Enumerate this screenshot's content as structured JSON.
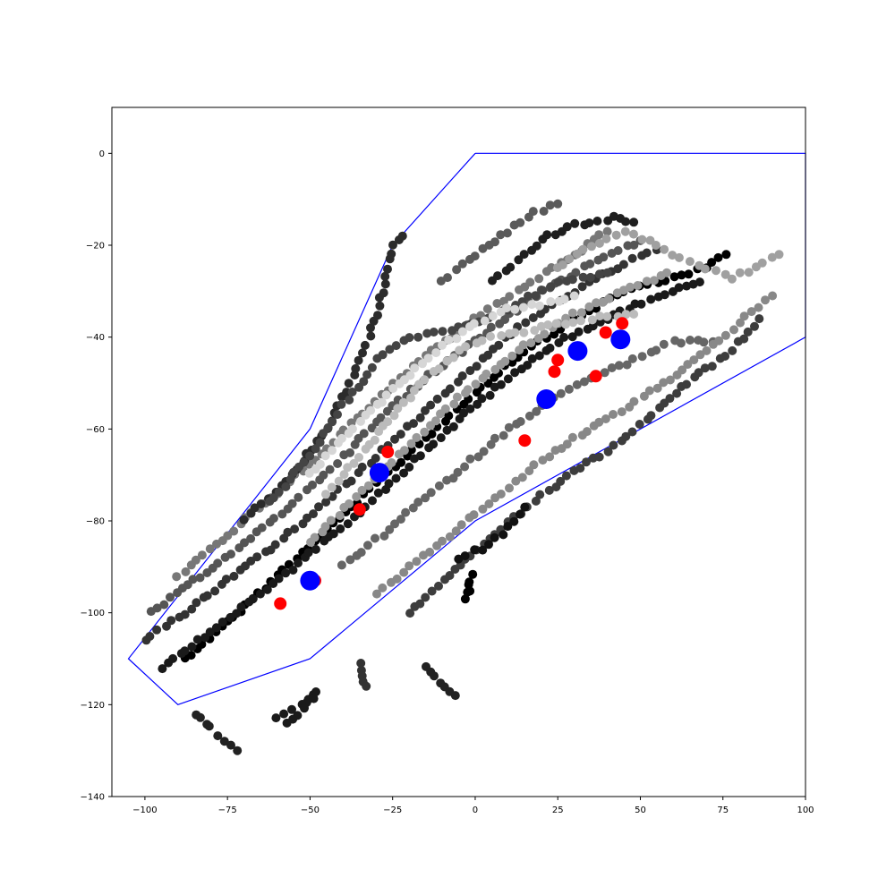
{
  "chart_data": {
    "type": "scatter",
    "title": "",
    "xlabel": "",
    "ylabel": "",
    "xlim": [
      -110,
      100
    ],
    "ylim": [
      -140,
      10
    ],
    "grid": false,
    "xticks": [
      -100,
      -75,
      -50,
      -25,
      0,
      25,
      50,
      75,
      100
    ],
    "yticks": [
      0,
      -20,
      -40,
      -60,
      -80,
      -100,
      -120,
      -140
    ],
    "xtick_labels": [
      "−100",
      "−75",
      "−50",
      "−25",
      "0",
      "25",
      "50",
      "75",
      "100"
    ],
    "ytick_labels": [
      "0",
      "−20",
      "−40",
      "−60",
      "−80",
      "−100",
      "−120",
      "−140"
    ],
    "colors": {
      "boundary": "#0000ff",
      "red": "#ff0000",
      "blue": "#0000ff"
    },
    "boundary_polygon": [
      [
        0,
        0
      ],
      [
        100,
        0
      ],
      [
        100,
        -40
      ],
      [
        0,
        -80
      ],
      [
        -50,
        -110
      ],
      [
        -90,
        -120
      ],
      [
        -105,
        -110
      ],
      [
        -50,
        -60
      ],
      [
        -25,
        -20
      ],
      [
        0,
        0
      ]
    ],
    "blue_points": [
      [
        -50,
        -93
      ],
      [
        -29,
        -69.5
      ],
      [
        21.5,
        -53.5
      ],
      [
        31,
        -43
      ],
      [
        44,
        -40.5
      ]
    ],
    "red_points": [
      [
        -59,
        -98
      ],
      [
        -48.5,
        -93
      ],
      [
        -35,
        -77.5
      ],
      [
        -26.5,
        -65
      ],
      [
        15,
        -62.5
      ],
      [
        24,
        -47.5
      ],
      [
        25,
        -45
      ],
      [
        36.5,
        -48.5
      ],
      [
        39.5,
        -39
      ],
      [
        44.5,
        -37
      ]
    ],
    "tracks": [
      {
        "shade": "#000000",
        "points": [
          [
            -88,
            -110
          ],
          [
            -75,
            -102
          ],
          [
            -60,
            -92
          ],
          [
            -45,
            -82
          ],
          [
            -30,
            -72
          ],
          [
            -15,
            -62
          ],
          [
            0,
            -52
          ],
          [
            15,
            -43
          ],
          [
            30,
            -36
          ],
          [
            45,
            -30
          ],
          [
            60,
            -27
          ],
          [
            70,
            -25
          ],
          [
            76,
            -22
          ]
        ]
      },
      {
        "shade": "#1a1a1a",
        "points": [
          [
            -95,
            -112
          ],
          [
            -80,
            -104
          ],
          [
            -65,
            -96
          ],
          [
            -50,
            -87
          ],
          [
            -35,
            -78
          ],
          [
            -20,
            -68
          ],
          [
            -5,
            -58
          ],
          [
            10,
            -49
          ],
          [
            25,
            -41
          ],
          [
            40,
            -36
          ],
          [
            55,
            -31
          ],
          [
            68,
            -28
          ]
        ]
      },
      {
        "shade": "#333333",
        "points": [
          [
            -100,
            -106
          ],
          [
            -88,
            -100
          ],
          [
            -75,
            -93
          ],
          [
            -60,
            -85
          ],
          [
            -45,
            -76
          ],
          [
            -30,
            -66
          ],
          [
            -15,
            -56
          ],
          [
            0,
            -46
          ],
          [
            15,
            -37
          ],
          [
            30,
            -30
          ],
          [
            45,
            -24
          ],
          [
            55,
            -21
          ]
        ]
      },
      {
        "shade": "#555555",
        "points": [
          [
            -98,
            -100
          ],
          [
            -85,
            -93
          ],
          [
            -70,
            -85
          ],
          [
            -55,
            -76
          ],
          [
            -40,
            -66
          ],
          [
            -25,
            -55
          ],
          [
            -10,
            -46
          ],
          [
            5,
            -38
          ],
          [
            20,
            -30
          ],
          [
            35,
            -24
          ],
          [
            50,
            -19
          ]
        ]
      },
      {
        "shade": "#777777",
        "points": [
          [
            -90,
            -92
          ],
          [
            -75,
            -83
          ],
          [
            -60,
            -74
          ],
          [
            -45,
            -64
          ],
          [
            -30,
            -54
          ],
          [
            -15,
            -44
          ],
          [
            0,
            -36
          ],
          [
            15,
            -29
          ],
          [
            30,
            -22
          ],
          [
            40,
            -17
          ]
        ]
      },
      {
        "shade": "#2b2b2b",
        "points": [
          [
            -70,
            -80
          ],
          [
            -55,
            -70
          ],
          [
            -45,
            -60
          ],
          [
            -38,
            -50
          ],
          [
            -32,
            -40
          ],
          [
            -28,
            -30
          ],
          [
            -25,
            -20
          ],
          [
            -22,
            -18
          ]
        ]
      },
      {
        "shade": "#444444",
        "points": [
          [
            -62,
            -76
          ],
          [
            -50,
            -66
          ],
          [
            -40,
            -55
          ],
          [
            -30,
            -45
          ],
          [
            -20,
            -40
          ],
          [
            -5,
            -38
          ],
          [
            10,
            -34
          ],
          [
            25,
            -28
          ],
          [
            40,
            -26
          ]
        ]
      },
      {
        "shade": "#999999",
        "points": [
          [
            -50,
            -85
          ],
          [
            -38,
            -76
          ],
          [
            -25,
            -67
          ],
          [
            -12,
            -58
          ],
          [
            0,
            -50
          ],
          [
            15,
            -42
          ],
          [
            30,
            -35
          ],
          [
            45,
            -30
          ],
          [
            58,
            -26
          ]
        ]
      },
      {
        "shade": "#bbbbbb",
        "points": [
          [
            -45,
            -74
          ],
          [
            -35,
            -66
          ],
          [
            -25,
            -57
          ],
          [
            -15,
            -49
          ],
          [
            -5,
            -43
          ],
          [
            5,
            -40
          ],
          [
            20,
            -38
          ],
          [
            35,
            -36
          ],
          [
            48,
            -35
          ]
        ]
      },
      {
        "shade": "#d6d6d6",
        "points": [
          [
            -50,
            -70
          ],
          [
            -40,
            -62
          ],
          [
            -30,
            -55
          ],
          [
            -20,
            -48
          ],
          [
            -10,
            -42
          ],
          [
            0,
            -37
          ],
          [
            10,
            -34
          ],
          [
            20,
            -33
          ],
          [
            30,
            -31
          ]
        ]
      },
      {
        "shade": "#666666",
        "points": [
          [
            -40,
            -90
          ],
          [
            -28,
            -83
          ],
          [
            -15,
            -75
          ],
          [
            -3,
            -68
          ],
          [
            10,
            -60
          ],
          [
            22,
            -54
          ],
          [
            35,
            -49
          ],
          [
            48,
            -45
          ],
          [
            60,
            -41
          ],
          [
            72,
            -41
          ]
        ]
      },
      {
        "shade": "#888888",
        "points": [
          [
            -30,
            -96
          ],
          [
            -18,
            -89
          ],
          [
            -6,
            -82
          ],
          [
            6,
            -75
          ],
          [
            18,
            -68
          ],
          [
            30,
            -62
          ],
          [
            42,
            -57
          ],
          [
            55,
            -51
          ],
          [
            68,
            -44
          ],
          [
            80,
            -37
          ],
          [
            90,
            -31
          ]
        ]
      },
      {
        "shade": "#3d3d3d",
        "points": [
          [
            -20,
            -100
          ],
          [
            -8,
            -92
          ],
          [
            4,
            -84
          ],
          [
            16,
            -77
          ],
          [
            28,
            -70
          ],
          [
            40,
            -65
          ],
          [
            52,
            -58
          ],
          [
            64,
            -50
          ],
          [
            76,
            -44
          ],
          [
            86,
            -36
          ]
        ]
      },
      {
        "shade": "#1f1f1f",
        "points": [
          [
            5,
            -28
          ],
          [
            15,
            -22
          ],
          [
            22,
            -18
          ],
          [
            28,
            -16
          ],
          [
            35,
            -15
          ],
          [
            42,
            -14
          ],
          [
            48,
            -15
          ]
        ]
      },
      {
        "shade": "#5a5a5a",
        "points": [
          [
            -10,
            -28
          ],
          [
            0,
            -22
          ],
          [
            10,
            -17
          ],
          [
            18,
            -13
          ],
          [
            25,
            -11
          ]
        ]
      },
      {
        "shade": "#a0a0a0",
        "points": [
          [
            25,
            -25
          ],
          [
            35,
            -20
          ],
          [
            45,
            -17
          ],
          [
            55,
            -20
          ],
          [
            62,
            -23
          ],
          [
            70,
            -25
          ],
          [
            78,
            -27
          ],
          [
            85,
            -25
          ],
          [
            92,
            -22
          ]
        ]
      },
      {
        "shade": "#111111",
        "points": [
          [
            -5,
            -88
          ],
          [
            2,
            -86
          ],
          [
            8,
            -83
          ],
          [
            12,
            -80
          ],
          [
            15,
            -77
          ]
        ]
      },
      {
        "shade": "#000000",
        "points": [
          [
            -2,
            -95
          ],
          [
            -1,
            -92
          ],
          [
            -3,
            -97
          ]
        ]
      },
      {
        "shade": "#222222",
        "points": [
          [
            -15,
            -112
          ],
          [
            -12,
            -114
          ],
          [
            -9,
            -116
          ],
          [
            -6,
            -118
          ]
        ]
      },
      {
        "shade": "#333333",
        "points": [
          [
            -35,
            -111
          ],
          [
            -34,
            -114
          ],
          [
            -33,
            -116
          ]
        ]
      },
      {
        "shade": "#1a1a1a",
        "points": [
          [
            -60,
            -123
          ],
          [
            -55,
            -121
          ],
          [
            -50,
            -119
          ],
          [
            -48,
            -117
          ],
          [
            -52,
            -121
          ],
          [
            -57,
            -124
          ]
        ]
      },
      {
        "shade": "#222222",
        "points": [
          [
            -85,
            -122
          ],
          [
            -80,
            -125
          ],
          [
            -76,
            -128
          ],
          [
            -72,
            -130
          ]
        ]
      }
    ]
  }
}
